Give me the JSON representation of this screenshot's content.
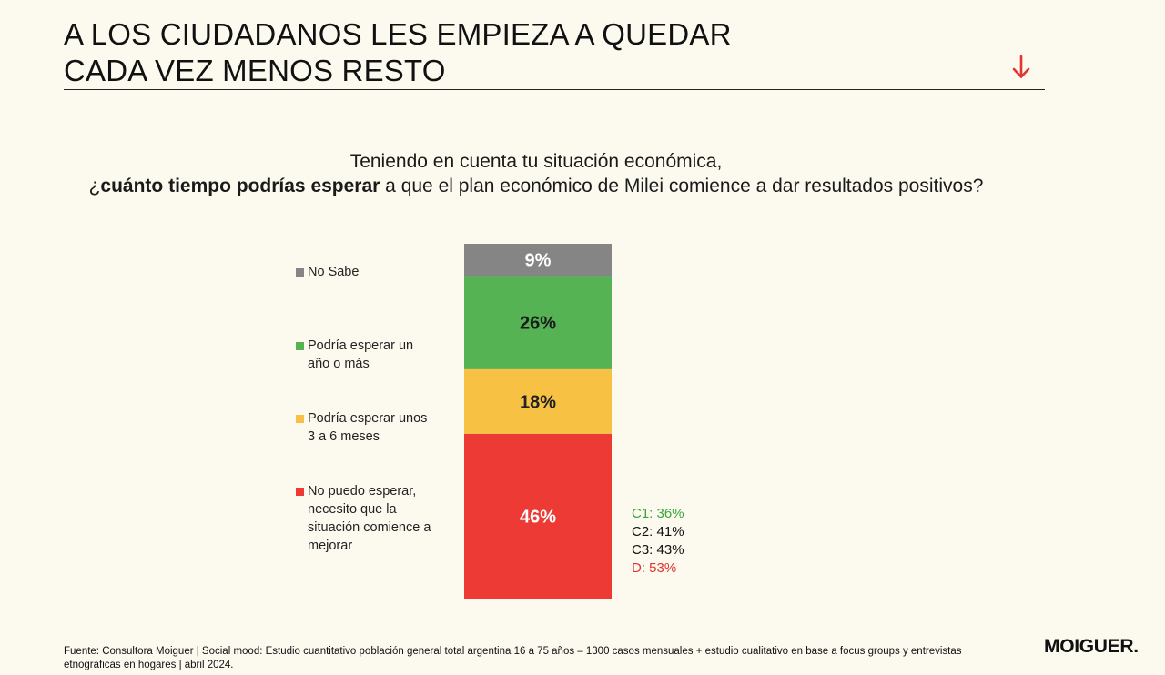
{
  "header": {
    "title_line1": "A LOS CIUDADANOS LES EMPIEZA A QUEDAR",
    "title_line2": "CADA VEZ MENOS RESTO"
  },
  "question": {
    "line1": "Teniendo en cuenta tu situación económica,",
    "line2_prefix": "¿",
    "line2_bold": "cuánto tiempo podrías esperar",
    "line2_rest": " a que el plan económico de Milei comience a dar resultados positivos?"
  },
  "chart_data": {
    "type": "bar",
    "stacked": true,
    "categories": [
      ""
    ],
    "ylim": [
      0,
      100
    ],
    "grid": false,
    "legend_placement": "left",
    "series": [
      {
        "name": "No puedo esperar, necesito que la situación comience a mejorar",
        "values": [
          46
        ],
        "label": "46%",
        "color": "#ee3a35",
        "label_color": "#ffffff"
      },
      {
        "name": "Podría esperar unos 3 a 6 meses",
        "values": [
          18
        ],
        "label": "18%",
        "color": "#f7c244",
        "label_color": "#222222"
      },
      {
        "name": "Podría esperar un año o más",
        "values": [
          26
        ],
        "label": "26%",
        "color": "#55b354",
        "label_color": "#1a1a1a"
      },
      {
        "name": "No Sabe",
        "values": [
          9
        ],
        "label": "9%",
        "color": "#858585",
        "label_color": "#ffffff"
      }
    ],
    "annotations": [
      {
        "text": "C1: 36%",
        "color": "#3aa53a"
      },
      {
        "text": "C2: 41%",
        "color": "#111111"
      },
      {
        "text": "C3: 43%",
        "color": "#111111"
      },
      {
        "text": "D: 53%",
        "color": "#e23530"
      }
    ]
  },
  "legend": {
    "no_sabe": {
      "lines": [
        "No Sabe"
      ]
    },
    "un_anio": {
      "lines": [
        "Podría esperar un",
        "año o más"
      ]
    },
    "meses": {
      "lines": [
        "Podría esperar unos",
        "3 a 6 meses"
      ]
    },
    "no_puedo": {
      "lines": [
        "No puedo esperar,",
        "necesito que la",
        "situación comience a",
        "mejorar"
      ]
    }
  },
  "footer": {
    "source_line1": "Fuente: Consultora Moiguer | Social mood: Estudio cuantitativo población general total argentina 16 a 75 años – 1300 casos mensuales + estudio cualitativo en base a focus groups y entrevistas",
    "source_line2": "etnográficas en hogares |  abril 2024.",
    "brand": "MOIGUER."
  },
  "icons": {
    "down_arrow": "arrow-down-icon",
    "down_arrow_color": "#e23530"
  }
}
